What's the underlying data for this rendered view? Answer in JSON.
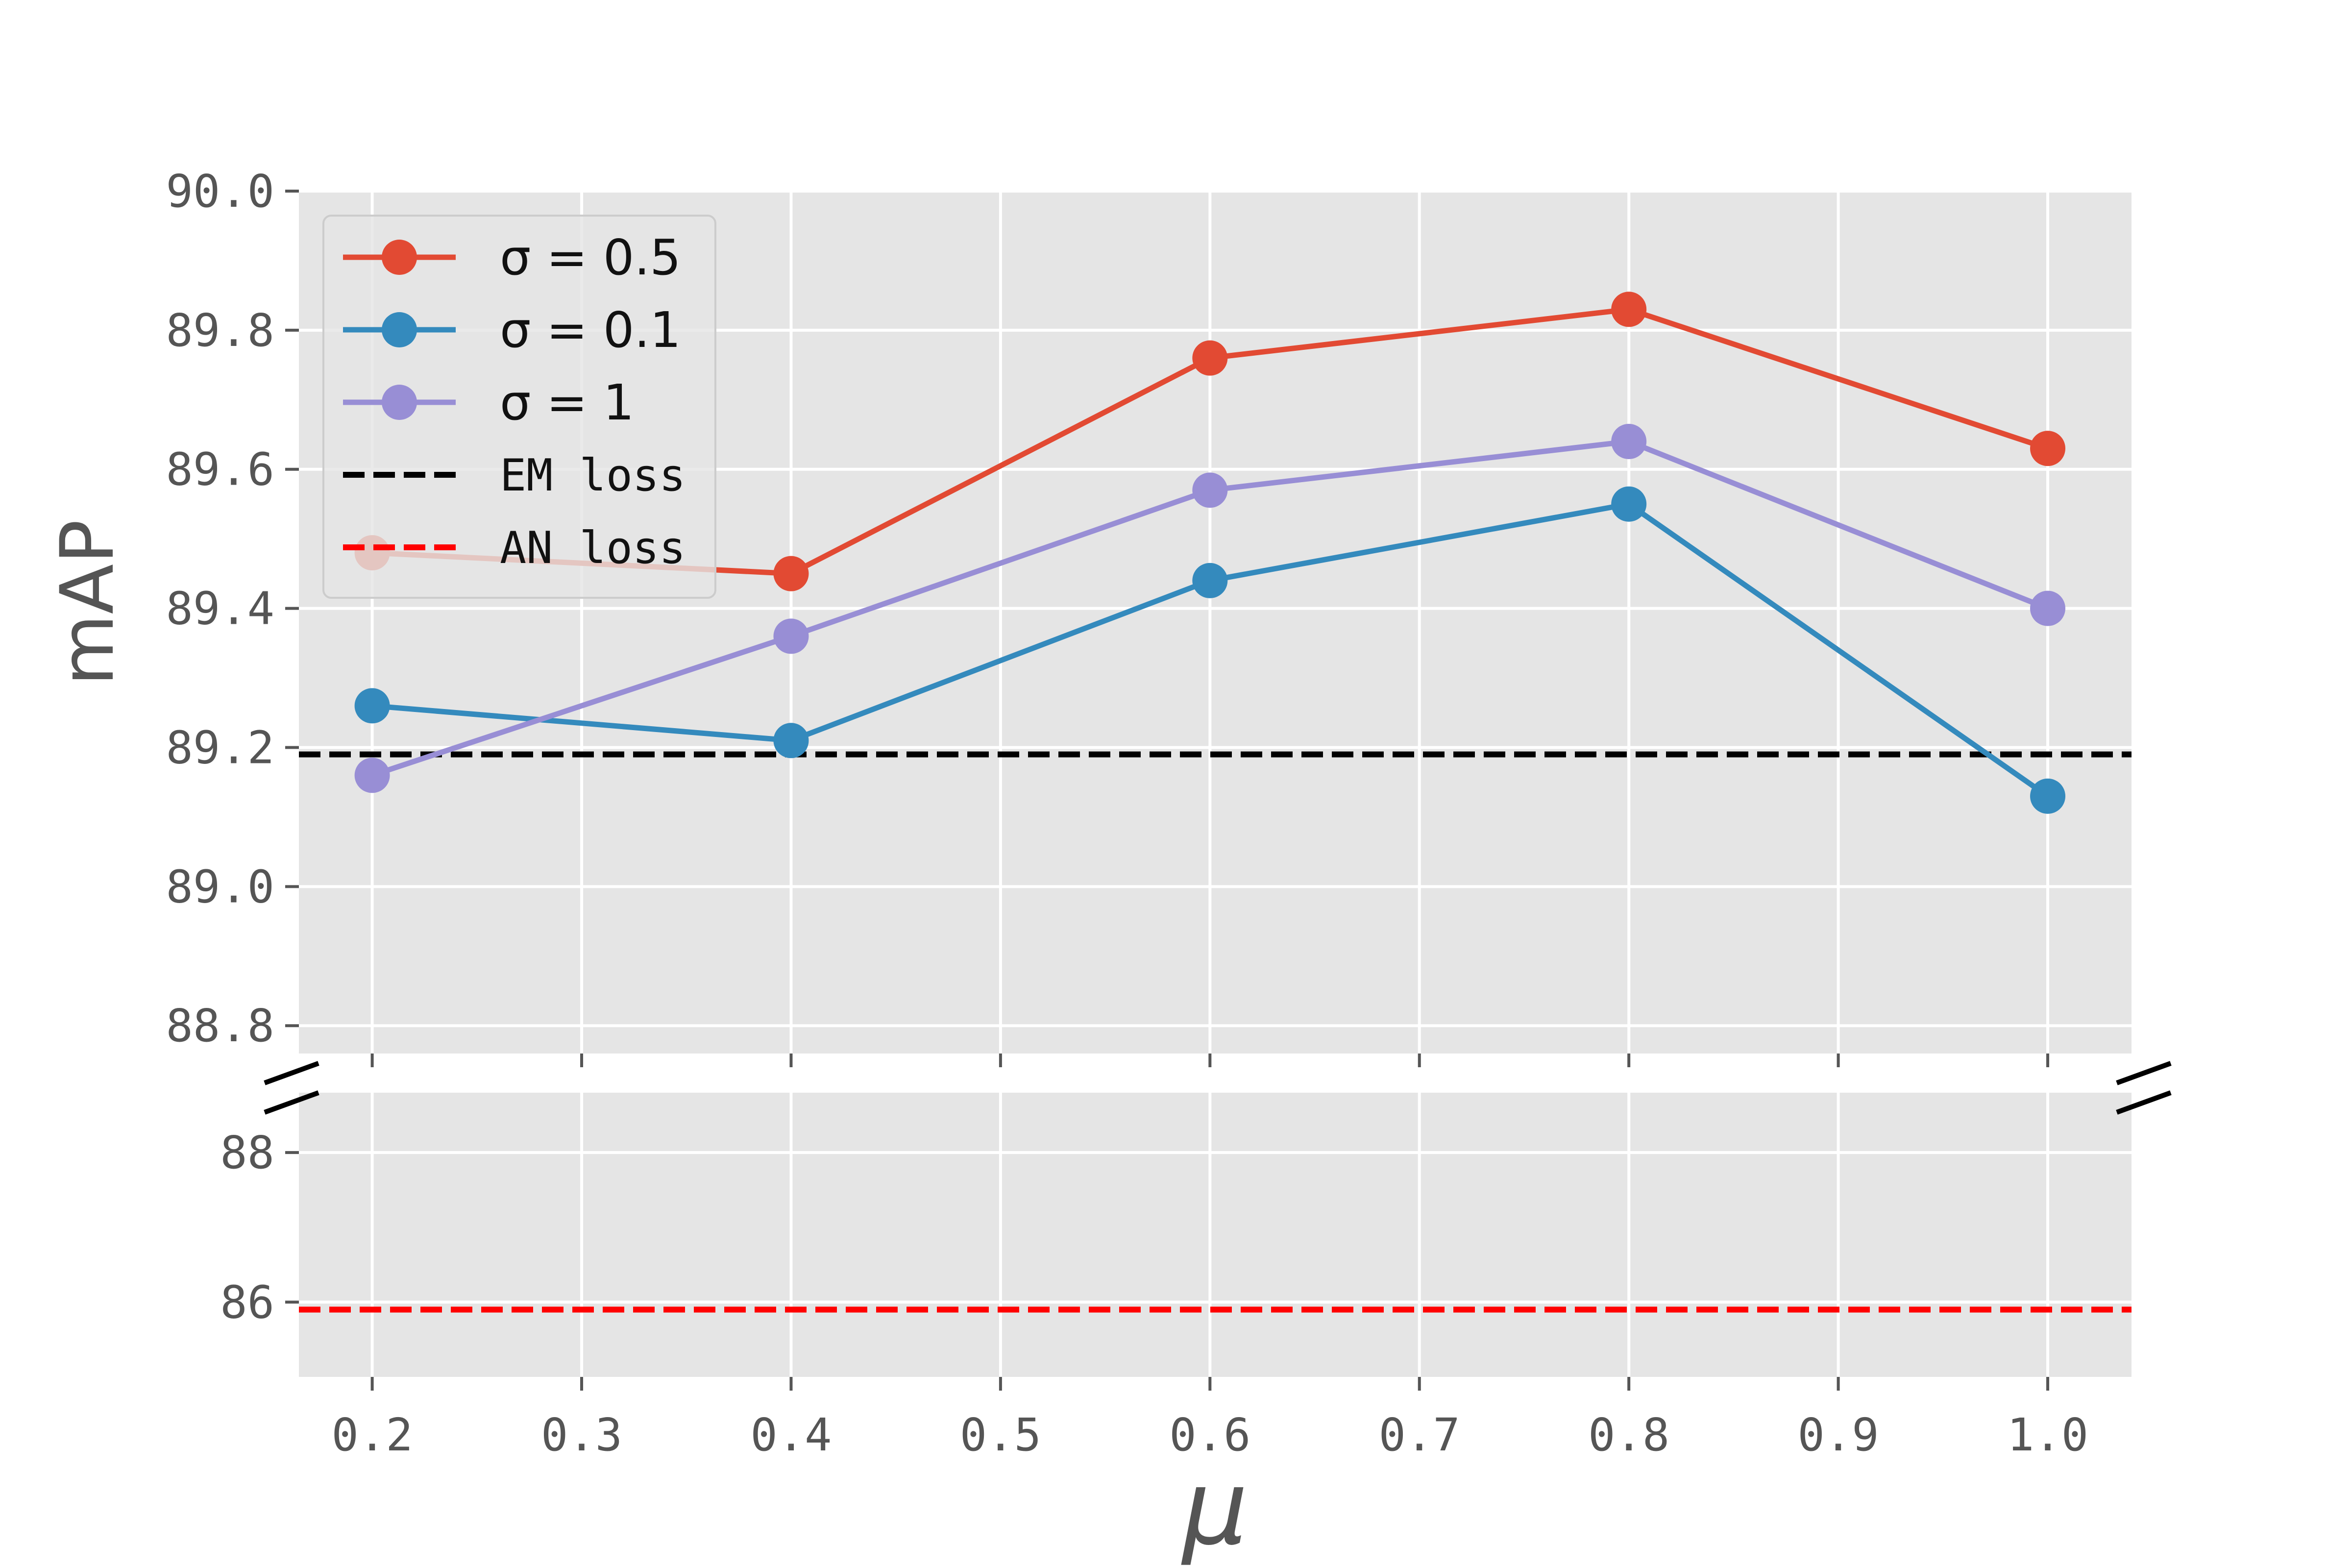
{
  "chart_data": {
    "type": "line",
    "x": [
      0.2,
      0.4,
      0.6,
      0.8,
      1.0
    ],
    "xlabel": "μ",
    "ylabel": "mAP",
    "xlim": [
      0.165,
      1.04
    ],
    "x_ticks": [
      "0.2",
      "0.3",
      "0.4",
      "0.5",
      "0.6",
      "0.7",
      "0.8",
      "0.9",
      "1.0"
    ],
    "broken_axis": {
      "upper_ylim": [
        88.76,
        90.0
      ],
      "lower_ylim": [
        85.0,
        88.8
      ],
      "upper_ticks": [
        "88.8",
        "89.0",
        "89.2",
        "89.4",
        "89.6",
        "89.8",
        "90.0"
      ],
      "lower_ticks": [
        "86",
        "88"
      ]
    },
    "series": [
      {
        "name": "σ = 0.5",
        "color": "#E24A33",
        "values": [
          89.48,
          89.45,
          89.76,
          89.83,
          89.63
        ]
      },
      {
        "name": "σ = 0.1",
        "color": "#348ABD",
        "values": [
          89.26,
          89.21,
          89.44,
          89.55,
          89.13
        ]
      },
      {
        "name": "σ = 1",
        "color": "#988ED5",
        "values": [
          89.16,
          89.36,
          89.57,
          89.64,
          89.4
        ]
      }
    ],
    "reference_lines": [
      {
        "name": "EM loss",
        "color": "#000000",
        "value": 89.19,
        "style": "dashed"
      },
      {
        "name": "AN loss",
        "color": "#FF0000",
        "value": 85.9,
        "style": "dashed"
      }
    ],
    "grid": true,
    "background": "#E5E5E5",
    "legend_position": "top-left"
  }
}
